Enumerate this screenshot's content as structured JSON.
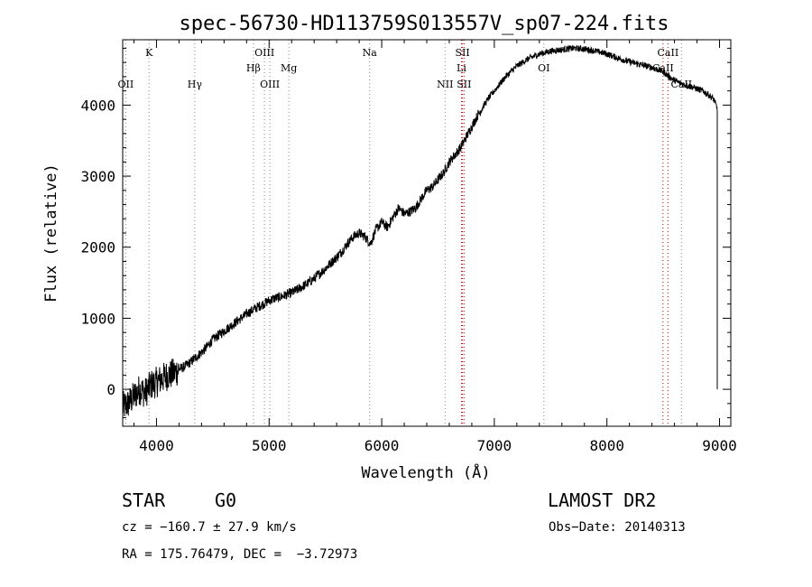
{
  "chart_data": {
    "type": "line",
    "title": "spec-56730-HD113759S013557V_sp07-224.fits",
    "xlabel": "Wavelength (Å)",
    "ylabel": "Flux (relative)",
    "xlim": [
      3700,
      9100
    ],
    "ylim": [
      -520,
      4920
    ],
    "x_ticks": [
      4000,
      5000,
      6000,
      7000,
      8000,
      9000
    ],
    "y_ticks": [
      0,
      1000,
      2000,
      3000,
      4000
    ],
    "grid": false,
    "series": [
      {
        "color": "#000000",
        "x": [
          3700,
          3750,
          3800,
          3850,
          3900,
          3950,
          4000,
          4050,
          4100,
          4150,
          4200,
          4250,
          4300,
          4350,
          4400,
          4450,
          4500,
          4550,
          4600,
          4650,
          4700,
          4750,
          4800,
          4850,
          4900,
          4950,
          5000,
          5050,
          5100,
          5150,
          5200,
          5250,
          5300,
          5350,
          5400,
          5450,
          5500,
          5550,
          5600,
          5650,
          5700,
          5750,
          5800,
          5850,
          5900,
          5950,
          6000,
          6050,
          6100,
          6150,
          6200,
          6250,
          6300,
          6350,
          6400,
          6450,
          6500,
          6550,
          6600,
          6650,
          6700,
          6750,
          6800,
          6850,
          6900,
          6950,
          7000,
          7100,
          7200,
          7300,
          7400,
          7500,
          7600,
          7700,
          7800,
          7900,
          8000,
          8100,
          8200,
          8300,
          8400,
          8500,
          8550,
          8600,
          8650,
          8700,
          8750,
          8800,
          8850,
          8900,
          8950,
          8980
        ],
        "y": [
          -250,
          -200,
          -100,
          0,
          -50,
          60,
          100,
          150,
          200,
          220,
          280,
          320,
          380,
          450,
          520,
          600,
          700,
          760,
          820,
          880,
          940,
          1000,
          1060,
          1110,
          1160,
          1200,
          1250,
          1280,
          1300,
          1330,
          1360,
          1400,
          1450,
          1500,
          1560,
          1630,
          1700,
          1780,
          1860,
          1950,
          2060,
          2150,
          2200,
          2150,
          2050,
          2250,
          2350,
          2280,
          2420,
          2550,
          2470,
          2500,
          2550,
          2680,
          2800,
          2850,
          2950,
          3050,
          3200,
          3300,
          3400,
          3550,
          3700,
          3850,
          3980,
          4100,
          4200,
          4400,
          4550,
          4650,
          4720,
          4760,
          4780,
          4800,
          4790,
          4760,
          4720,
          4660,
          4610,
          4570,
          4530,
          4470,
          4400,
          4350,
          4310,
          4280,
          4260,
          4230,
          4200,
          4150,
          4080,
          3950
        ]
      }
    ],
    "spectral_lines": [
      {
        "label": "K",
        "wavelength": 3934,
        "row": 0,
        "color": "#888888"
      },
      {
        "label": "OII",
        "wavelength": 3727,
        "row": 2,
        "color": "#888888"
      },
      {
        "label": "Hγ",
        "wavelength": 4340,
        "row": 2,
        "color": "#888888"
      },
      {
        "label": "OIII",
        "wavelength": 4959,
        "row": 0,
        "color": "#888888"
      },
      {
        "label": "Hβ",
        "wavelength": 4861,
        "row": 1,
        "color": "#888888"
      },
      {
        "label": "OIII",
        "wavelength": 5007,
        "row": 2,
        "color": "#888888"
      },
      {
        "label": "Mg",
        "wavelength": 5175,
        "row": 1,
        "color": "#888888"
      },
      {
        "label": "Na",
        "wavelength": 5893,
        "row": 0,
        "color": "#888888"
      },
      {
        "label": "SII",
        "wavelength": 6717,
        "row": 0,
        "color": "#cc0000"
      },
      {
        "label": "Li",
        "wavelength": 6708,
        "row": 1,
        "color": "#cc0000"
      },
      {
        "label": "NII",
        "wavelength": 6563,
        "row": 2,
        "color": "#888888"
      },
      {
        "label": "SII",
        "wavelength": 6731,
        "row": 2,
        "color": "#cc0000"
      },
      {
        "label": "OI",
        "wavelength": 7440,
        "row": 1,
        "color": "#888888"
      },
      {
        "label": "CaII",
        "wavelength": 8542,
        "row": 0,
        "color": "#cc0000"
      },
      {
        "label": "CaII",
        "wavelength": 8498,
        "row": 1,
        "color": "#cc0000"
      },
      {
        "label": "CaII",
        "wavelength": 8662,
        "row": 2,
        "color": "#888888"
      }
    ]
  },
  "info": {
    "object_type": "STAR",
    "subclass": "G0",
    "survey": "LAMOST DR2",
    "cz": "cz = −160.7 ± 27.9 km/s",
    "obs_date": "Obs−Date: 20140313",
    "coords": "RA = 175.76479, DEC =  −3.72973"
  }
}
